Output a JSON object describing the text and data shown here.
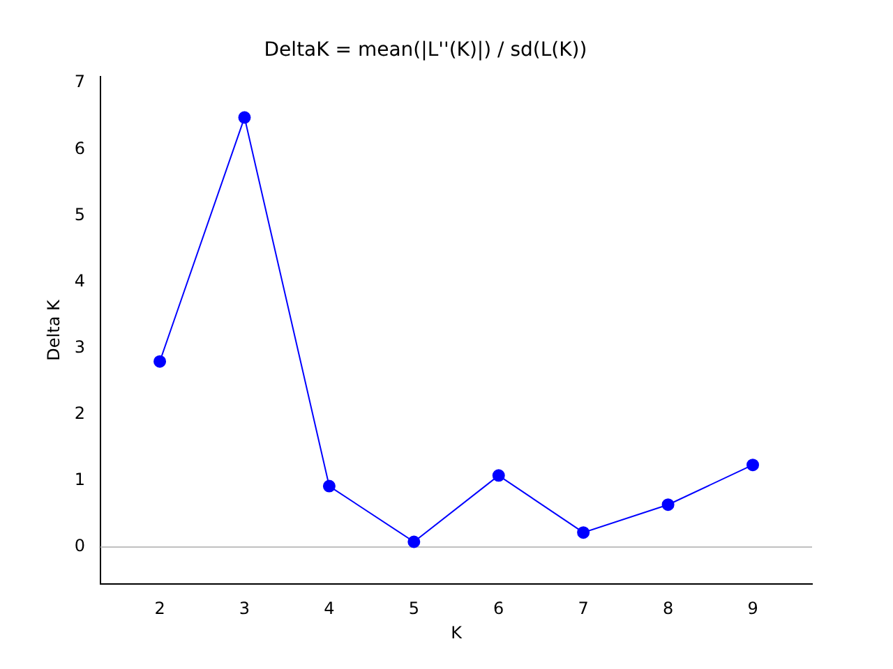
{
  "chart_data": {
    "type": "line",
    "title": "DeltaK = mean(|L''(K)|) / sd(L(K))",
    "xlabel": "K",
    "ylabel": "Delta K",
    "x": [
      2,
      3,
      4,
      5,
      6,
      7,
      8,
      9
    ],
    "series": [
      {
        "color": "#0000ff",
        "values": [
          2.8,
          6.48,
          0.92,
          0.08,
          1.08,
          0.22,
          0.64,
          1.24
        ]
      }
    ],
    "xlim": [
      1.3,
      9.7
    ],
    "xticks": [
      2,
      3,
      4,
      5,
      6,
      7,
      8,
      9
    ],
    "ylim": [
      -0.56,
      7.1
    ],
    "yticks": [
      0,
      1,
      2,
      3,
      4,
      5,
      6,
      7
    ],
    "ref_lines": [
      {
        "axis": "y",
        "value": 0,
        "color": "#c0c0c0"
      }
    ],
    "grid": false,
    "legend": false,
    "marker": "circle",
    "line_style": "solid"
  }
}
